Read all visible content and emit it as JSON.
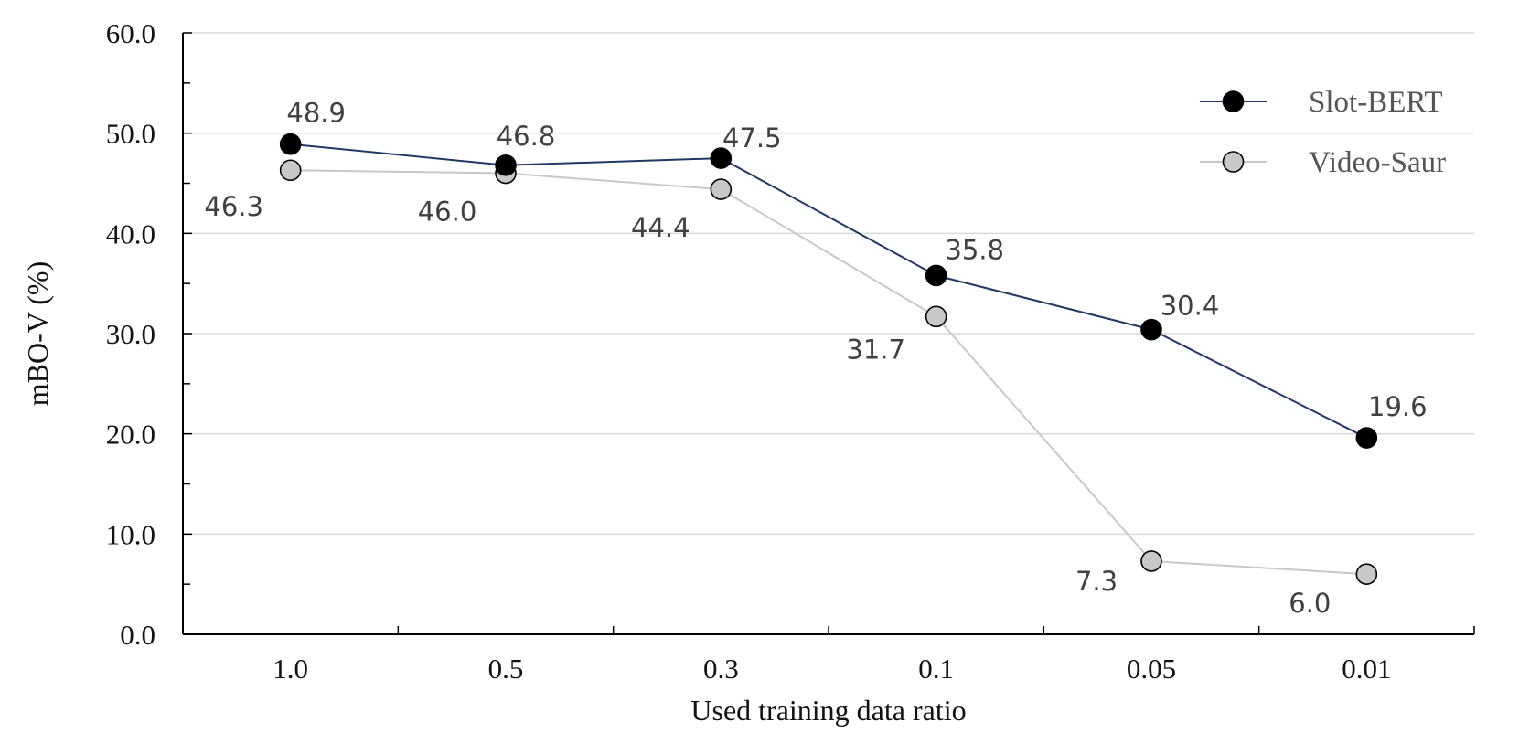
{
  "chart_data": {
    "type": "line",
    "title": "",
    "xlabel": "Used training data ratio",
    "ylabel": "mBO-V (%)",
    "categories": [
      "1.0",
      "0.5",
      "0.3",
      "0.1",
      "0.05",
      "0.01"
    ],
    "ylim": [
      0,
      60
    ],
    "yticks": [
      "0.0",
      "10.0",
      "20.0",
      "30.0",
      "40.0",
      "50.0",
      "60.0"
    ],
    "grid": true,
    "legend_position": "top-right",
    "series": [
      {
        "name": "Slot-BERT",
        "values": [
          48.9,
          46.8,
          47.5,
          35.8,
          30.4,
          19.6
        ],
        "labels": [
          "48.9",
          "46.8",
          "47.5",
          "35.8",
          "30.4",
          "19.6"
        ],
        "line_color": "#1f3864",
        "marker_color": "#000000"
      },
      {
        "name": "Video-Saur",
        "values": [
          46.3,
          46.0,
          44.4,
          31.7,
          7.3,
          6.0
        ],
        "labels": [
          "46.3",
          "46.0",
          "44.4",
          "31.7",
          "7.3",
          "6.0"
        ],
        "line_color": "#c8c8c8",
        "marker_color": "#c8c8c8"
      }
    ]
  }
}
